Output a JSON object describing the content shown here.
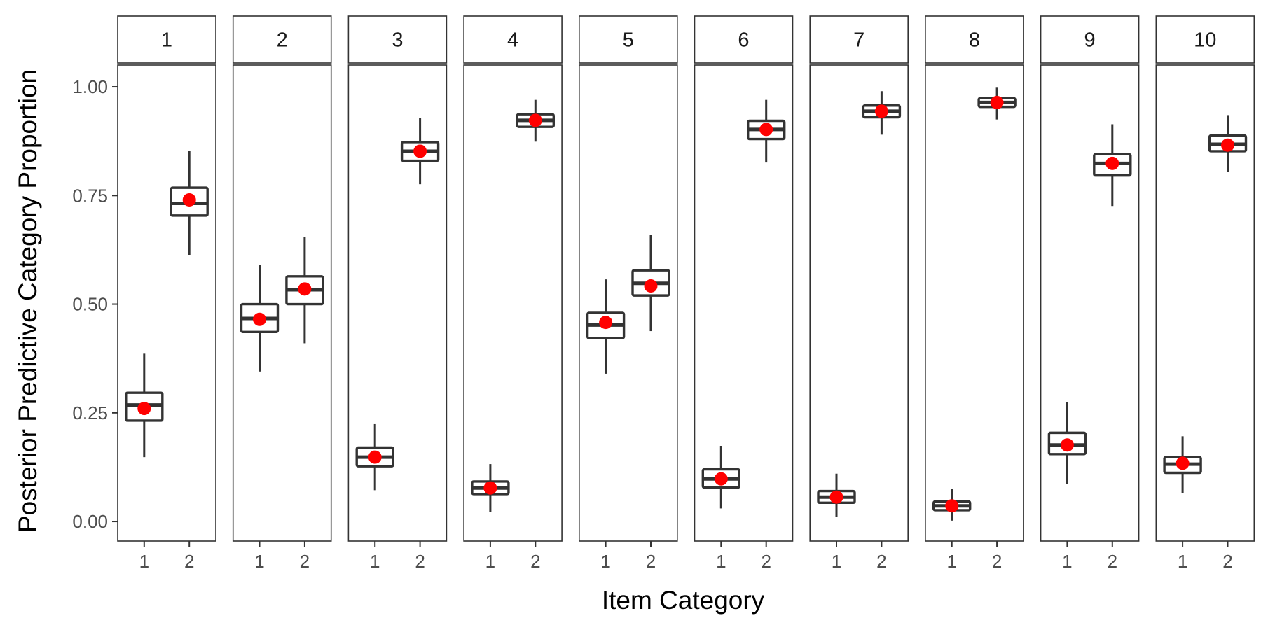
{
  "chart_data": {
    "type": "boxplot",
    "facet_var": "item",
    "xlabel": "Item Category",
    "ylabel": "Posterior Predictive Category Proportion",
    "ylim": [
      -0.045,
      1.05
    ],
    "yticks": [
      {
        "value": 0.0,
        "label": "0.00"
      },
      {
        "value": 0.25,
        "label": "0.25"
      },
      {
        "value": 0.5,
        "label": "0.50"
      },
      {
        "value": 0.75,
        "label": "0.75"
      },
      {
        "value": 1.0,
        "label": "1.00"
      }
    ],
    "categories": [
      "1",
      "2"
    ],
    "grid": false,
    "legend": "none",
    "colors": {
      "box": "#333333",
      "observed_point": "#ff0000",
      "frame": "#333333",
      "strip_fill": "#ffffff"
    },
    "panels": [
      {
        "label": "1",
        "boxes": [
          {
            "category": "1",
            "whisker_low": 0.148,
            "q1": 0.232,
            "median": 0.268,
            "q3": 0.296,
            "whisker_high": 0.386,
            "observed": 0.26
          },
          {
            "category": "2",
            "whisker_low": 0.612,
            "q1": 0.704,
            "median": 0.732,
            "q3": 0.768,
            "whisker_high": 0.852,
            "observed": 0.74
          }
        ]
      },
      {
        "label": "2",
        "boxes": [
          {
            "category": "1",
            "whisker_low": 0.345,
            "q1": 0.436,
            "median": 0.467,
            "q3": 0.5,
            "whisker_high": 0.59,
            "observed": 0.465
          },
          {
            "category": "2",
            "whisker_low": 0.41,
            "q1": 0.5,
            "median": 0.533,
            "q3": 0.564,
            "whisker_high": 0.655,
            "observed": 0.535
          }
        ]
      },
      {
        "label": "3",
        "boxes": [
          {
            "category": "1",
            "whisker_low": 0.072,
            "q1": 0.127,
            "median": 0.148,
            "q3": 0.17,
            "whisker_high": 0.224,
            "observed": 0.148
          },
          {
            "category": "2",
            "whisker_low": 0.776,
            "q1": 0.83,
            "median": 0.852,
            "q3": 0.873,
            "whisker_high": 0.928,
            "observed": 0.852
          }
        ]
      },
      {
        "label": "4",
        "boxes": [
          {
            "category": "1",
            "whisker_low": 0.022,
            "q1": 0.063,
            "median": 0.077,
            "q3": 0.092,
            "whisker_high": 0.132,
            "observed": 0.077
          },
          {
            "category": "2",
            "whisker_low": 0.874,
            "q1": 0.908,
            "median": 0.923,
            "q3": 0.937,
            "whisker_high": 0.97,
            "observed": 0.923
          }
        ]
      },
      {
        "label": "5",
        "boxes": [
          {
            "category": "1",
            "whisker_low": 0.34,
            "q1": 0.422,
            "median": 0.452,
            "q3": 0.48,
            "whisker_high": 0.557,
            "observed": 0.458
          },
          {
            "category": "2",
            "whisker_low": 0.438,
            "q1": 0.52,
            "median": 0.548,
            "q3": 0.578,
            "whisker_high": 0.66,
            "observed": 0.542
          }
        ]
      },
      {
        "label": "6",
        "boxes": [
          {
            "category": "1",
            "whisker_low": 0.03,
            "q1": 0.078,
            "median": 0.098,
            "q3": 0.12,
            "whisker_high": 0.174,
            "observed": 0.098
          },
          {
            "category": "2",
            "whisker_low": 0.826,
            "q1": 0.88,
            "median": 0.902,
            "q3": 0.922,
            "whisker_high": 0.97,
            "observed": 0.902
          }
        ]
      },
      {
        "label": "7",
        "boxes": [
          {
            "category": "1",
            "whisker_low": 0.01,
            "q1": 0.043,
            "median": 0.056,
            "q3": 0.07,
            "whisker_high": 0.11,
            "observed": 0.056
          },
          {
            "category": "2",
            "whisker_low": 0.89,
            "q1": 0.93,
            "median": 0.944,
            "q3": 0.957,
            "whisker_high": 0.99,
            "observed": 0.944
          }
        ]
      },
      {
        "label": "8",
        "boxes": [
          {
            "category": "1",
            "whisker_low": 0.002,
            "q1": 0.026,
            "median": 0.036,
            "q3": 0.046,
            "whisker_high": 0.075,
            "observed": 0.036
          },
          {
            "category": "2",
            "whisker_low": 0.925,
            "q1": 0.954,
            "median": 0.964,
            "q3": 0.974,
            "whisker_high": 0.998,
            "observed": 0.964
          }
        ]
      },
      {
        "label": "9",
        "boxes": [
          {
            "category": "1",
            "whisker_low": 0.086,
            "q1": 0.155,
            "median": 0.176,
            "q3": 0.204,
            "whisker_high": 0.274,
            "observed": 0.176
          },
          {
            "category": "2",
            "whisker_low": 0.726,
            "q1": 0.796,
            "median": 0.824,
            "q3": 0.845,
            "whisker_high": 0.914,
            "observed": 0.824
          }
        ]
      },
      {
        "label": "10",
        "boxes": [
          {
            "category": "1",
            "whisker_low": 0.065,
            "q1": 0.112,
            "median": 0.132,
            "q3": 0.148,
            "whisker_high": 0.196,
            "observed": 0.134
          },
          {
            "category": "2",
            "whisker_low": 0.804,
            "q1": 0.852,
            "median": 0.868,
            "q3": 0.888,
            "whisker_high": 0.935,
            "observed": 0.866
          }
        ]
      }
    ]
  }
}
